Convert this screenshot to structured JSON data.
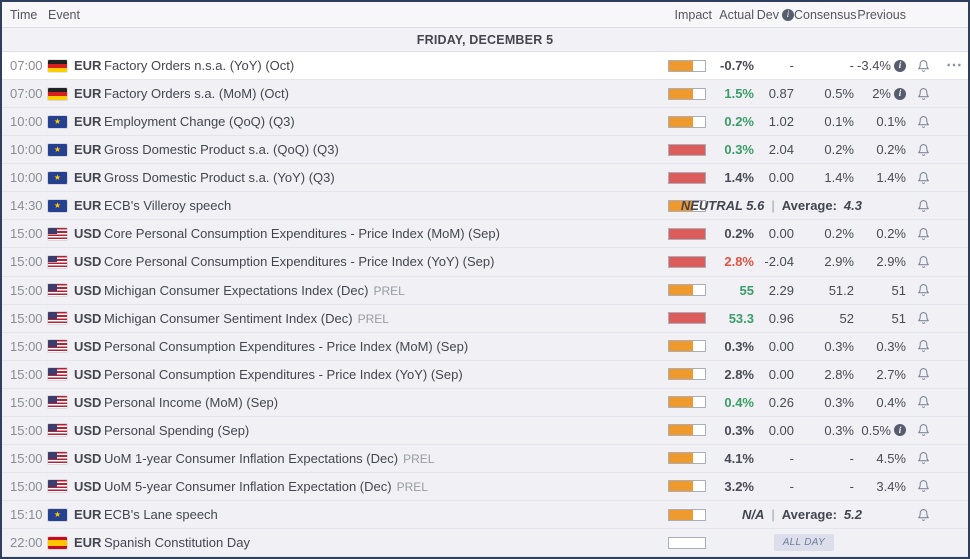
{
  "meta": {
    "date_header": "FRIDAY, DECEMBER 5"
  },
  "columns": {
    "time": "Time",
    "event": "Event",
    "impact": "Impact",
    "actual": "Actual",
    "dev": "Dev",
    "consensus": "Consensus",
    "previous": "Previous"
  },
  "icons": {
    "info": "i",
    "more": "⋯",
    "divider": "|"
  },
  "colors": {
    "green": "#3b9d68",
    "red": "#dd5444",
    "dark": "#4a4a55",
    "impact_medium": "#ef9a2f",
    "impact_high": "#dc5c5c"
  },
  "rows": [
    {
      "time": "07:00",
      "flag": "de",
      "currency": "EUR",
      "event": "Factory Orders n.s.a. (YoY) (Oct)",
      "type": "data",
      "impact": "medium",
      "actual": "-0.7%",
      "actual_color": "dark",
      "dev": "-",
      "consensus": "-",
      "previous": "-3.4%",
      "previous_info": true,
      "highlighted": true,
      "menu": true,
      "bell": true
    },
    {
      "time": "07:00",
      "flag": "de",
      "currency": "EUR",
      "event": "Factory Orders s.a. (MoM) (Oct)",
      "type": "data",
      "impact": "medium",
      "actual": "1.5%",
      "actual_color": "green",
      "dev": "0.87",
      "consensus": "0.5%",
      "previous": "2%",
      "previous_info": true,
      "bell": true
    },
    {
      "time": "10:00",
      "flag": "eu",
      "currency": "EUR",
      "event": "Employment Change (QoQ) (Q3)",
      "type": "data",
      "impact": "medium",
      "actual": "0.2%",
      "actual_color": "green",
      "dev": "1.02",
      "consensus": "0.1%",
      "previous": "0.1%",
      "bell": true
    },
    {
      "time": "10:00",
      "flag": "eu",
      "currency": "EUR",
      "event": "Gross Domestic Product s.a. (QoQ) (Q3)",
      "type": "data",
      "impact": "high",
      "actual": "0.3%",
      "actual_color": "green",
      "dev": "2.04",
      "consensus": "0.2%",
      "previous": "0.2%",
      "bell": true
    },
    {
      "time": "10:00",
      "flag": "eu",
      "currency": "EUR",
      "event": "Gross Domestic Product s.a. (YoY) (Q3)",
      "type": "data",
      "impact": "high",
      "actual": "1.4%",
      "actual_color": "dark",
      "dev": "0.00",
      "consensus": "1.4%",
      "previous": "1.4%",
      "bell": true
    },
    {
      "time": "14:30",
      "flag": "eu",
      "currency": "EUR",
      "event": "ECB's Villeroy speech",
      "type": "speech",
      "impact": "medium",
      "sentiment": "NEUTRAL 5.6",
      "average_label": "Average:",
      "average": "4.3",
      "bell": true
    },
    {
      "time": "15:00",
      "flag": "us",
      "currency": "USD",
      "event": "Core Personal Consumption Expenditures - Price Index (MoM) (Sep)",
      "type": "data",
      "impact": "high",
      "actual": "0.2%",
      "actual_color": "dark",
      "dev": "0.00",
      "consensus": "0.2%",
      "previous": "0.2%",
      "bell": true
    },
    {
      "time": "15:00",
      "flag": "us",
      "currency": "USD",
      "event": "Core Personal Consumption Expenditures - Price Index (YoY) (Sep)",
      "type": "data",
      "impact": "high",
      "actual": "2.8%",
      "actual_color": "red",
      "dev": "-2.04",
      "consensus": "2.9%",
      "previous": "2.9%",
      "bell": true
    },
    {
      "time": "15:00",
      "flag": "us",
      "currency": "USD",
      "event": "Michigan Consumer Expectations Index (Dec)",
      "prel_label": "PREL",
      "type": "data",
      "impact": "medium",
      "actual": "55",
      "actual_color": "green",
      "dev": "2.29",
      "consensus": "51.2",
      "previous": "51",
      "bell": true
    },
    {
      "time": "15:00",
      "flag": "us",
      "currency": "USD",
      "event": "Michigan Consumer Sentiment Index (Dec)",
      "prel_label": "PREL",
      "type": "data",
      "impact": "high",
      "actual": "53.3",
      "actual_color": "green",
      "dev": "0.96",
      "consensus": "52",
      "previous": "51",
      "bell": true
    },
    {
      "time": "15:00",
      "flag": "us",
      "currency": "USD",
      "event": "Personal Consumption Expenditures - Price Index (MoM) (Sep)",
      "type": "data",
      "impact": "medium",
      "actual": "0.3%",
      "actual_color": "dark",
      "dev": "0.00",
      "consensus": "0.3%",
      "previous": "0.3%",
      "bell": true
    },
    {
      "time": "15:00",
      "flag": "us",
      "currency": "USD",
      "event": "Personal Consumption Expenditures - Price Index (YoY) (Sep)",
      "type": "data",
      "impact": "medium",
      "actual": "2.8%",
      "actual_color": "dark",
      "dev": "0.00",
      "consensus": "2.8%",
      "previous": "2.7%",
      "bell": true
    },
    {
      "time": "15:00",
      "flag": "us",
      "currency": "USD",
      "event": "Personal Income (MoM) (Sep)",
      "type": "data",
      "impact": "medium",
      "actual": "0.4%",
      "actual_color": "green",
      "dev": "0.26",
      "consensus": "0.3%",
      "previous": "0.4%",
      "bell": true
    },
    {
      "time": "15:00",
      "flag": "us",
      "currency": "USD",
      "event": "Personal Spending (Sep)",
      "type": "data",
      "impact": "medium",
      "actual": "0.3%",
      "actual_color": "dark",
      "dev": "0.00",
      "consensus": "0.3%",
      "previous": "0.5%",
      "previous_info": true,
      "bell": true
    },
    {
      "time": "15:00",
      "flag": "us",
      "currency": "USD",
      "event": "UoM 1-year Consumer Inflation Expectations (Dec)",
      "prel_label": "PREL",
      "type": "data",
      "impact": "medium",
      "actual": "4.1%",
      "actual_color": "dark",
      "dev": "-",
      "consensus": "-",
      "previous": "4.5%",
      "bell": true
    },
    {
      "time": "15:00",
      "flag": "us",
      "currency": "USD",
      "event": "UoM 5-year Consumer Inflation Expectation (Dec)",
      "prel_label": "PREL",
      "type": "data",
      "impact": "medium",
      "actual": "3.2%",
      "actual_color": "dark",
      "dev": "-",
      "consensus": "-",
      "previous": "3.4%",
      "bell": true
    },
    {
      "time": "15:10",
      "flag": "eu",
      "currency": "EUR",
      "event": "ECB's Lane speech",
      "type": "speech",
      "impact": "medium",
      "sentiment": "N/A",
      "average_label": "Average:",
      "average": "5.2",
      "bell": true
    },
    {
      "time": "22:00",
      "flag": "es",
      "currency": "EUR",
      "event": "Spanish Constitution Day",
      "type": "holiday",
      "impact": "none",
      "badge": "ALL DAY",
      "bell": false
    }
  ]
}
